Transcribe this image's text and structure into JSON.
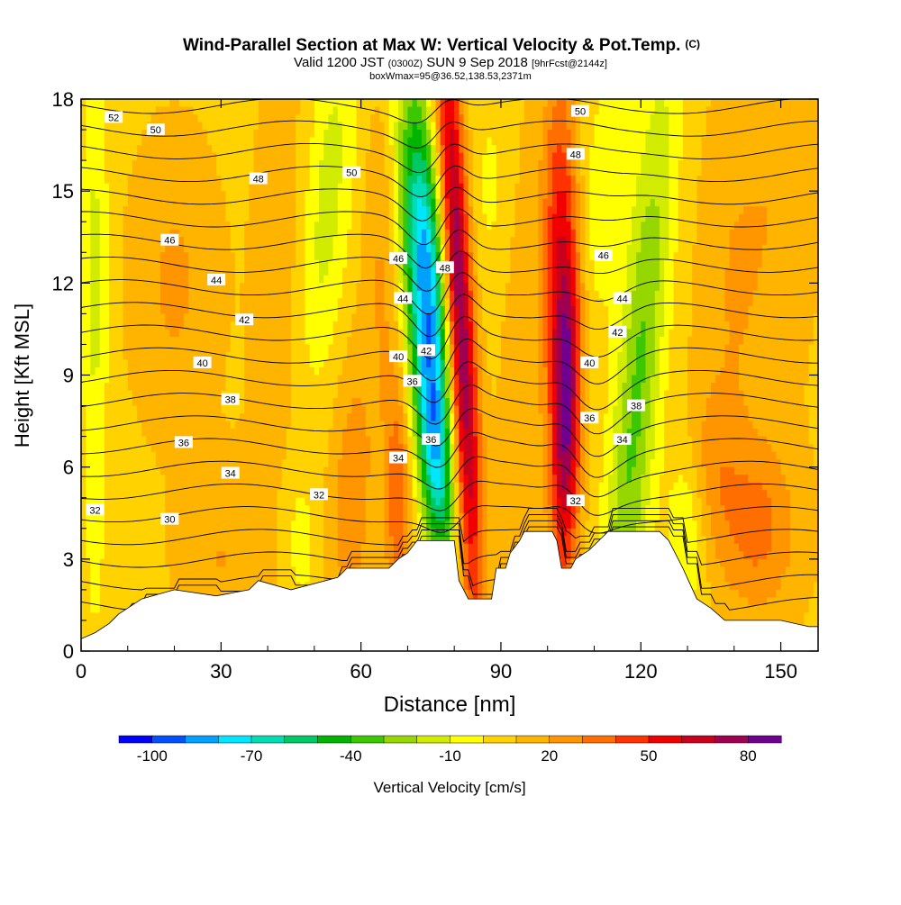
{
  "chart_data": {
    "type": "heatmap",
    "title": "Wind-Parallel Section at Max W: Vertical Velocity & Pot.Temp.",
    "title_mark": "(C)",
    "subtitle_parts": [
      "Valid 1200 JST",
      "(0300Z)",
      "SUN 9 Sep 2018",
      "[9hrFcst@2144z]"
    ],
    "subtitle2": "boxWmax=95@36.52,138.53,2371m",
    "xlabel": "Distance [nm]",
    "ylabel": "Height [Kft MSL]",
    "xlim": [
      0,
      158
    ],
    "ylim": [
      0,
      18
    ],
    "x_ticks": [
      0,
      30,
      60,
      90,
      120,
      150
    ],
    "y_ticks": [
      0,
      3,
      6,
      9,
      12,
      15,
      18
    ],
    "colorbar": {
      "label": "Vertical Velocity [cm/s]",
      "range": [
        -110,
        90
      ],
      "tick_labels": [
        -100,
        -70,
        -40,
        -10,
        20,
        50,
        80
      ],
      "colors": [
        "#0000ff",
        "#0050ff",
        "#00a0ff",
        "#00e6ff",
        "#00dcb4",
        "#00c864",
        "#00b400",
        "#3cc800",
        "#96d700",
        "#d2ec00",
        "#ffff00",
        "#ffd200",
        "#ffb400",
        "#ff9600",
        "#ff6e00",
        "#ff3200",
        "#f00000",
        "#c8001e",
        "#a00050",
        "#700090"
      ]
    },
    "w_features": [
      {
        "x": 74,
        "y": 12,
        "sx": 3.5,
        "sy": 4.5,
        "tilt": -0.45,
        "value": -95
      },
      {
        "x": 76,
        "y": 6,
        "sx": 2.5,
        "sy": 2.5,
        "tilt": -0.45,
        "value": -50
      },
      {
        "x": 81,
        "y": 11,
        "sx": 2.2,
        "sy": 7,
        "tilt": -0.35,
        "value": 85
      },
      {
        "x": 104,
        "y": 8,
        "sx": 2.2,
        "sy": 4,
        "tilt": 0.1,
        "value": 75
      },
      {
        "x": 102,
        "y": 14,
        "sx": 2.5,
        "sy": 4,
        "tilt": 0.1,
        "value": 35
      },
      {
        "x": 119,
        "y": 8,
        "sx": 3.5,
        "sy": 8,
        "tilt": 0.55,
        "value": -40
      },
      {
        "x": 112,
        "y": 15,
        "sx": 4,
        "sy": 3,
        "tilt": 0.5,
        "value": -15
      },
      {
        "x": 52,
        "y": 14,
        "sx": 4,
        "sy": 5,
        "tilt": 0.6,
        "value": -25
      },
      {
        "x": 58,
        "y": 5,
        "sx": 3,
        "sy": 3,
        "tilt": 0.2,
        "value": 20
      },
      {
        "x": 68,
        "y": 5,
        "sx": 2,
        "sy": 3,
        "tilt": 0,
        "value": 30
      },
      {
        "x": 65,
        "y": 13,
        "sx": 3,
        "sy": 4,
        "tilt": 0,
        "value": 15
      },
      {
        "x": 30,
        "y": 3,
        "sx": 6,
        "sy": 2,
        "tilt": 0,
        "value": 12
      },
      {
        "x": 45,
        "y": 10,
        "sx": 5,
        "sy": 6,
        "tilt": 0,
        "value": 12
      },
      {
        "x": 20,
        "y": 12,
        "sx": 6,
        "sy": 3,
        "tilt": 0,
        "value": 14
      },
      {
        "x": 3,
        "y": 12,
        "sx": 2,
        "sy": 8,
        "tilt": 0,
        "value": -20
      },
      {
        "x": 47,
        "y": 3.5,
        "sx": 3,
        "sy": 2,
        "tilt": 0,
        "value": -15
      },
      {
        "x": 88,
        "y": 15,
        "sx": 4,
        "sy": 3,
        "tilt": 0,
        "value": -10
      },
      {
        "x": 94,
        "y": 9,
        "sx": 3,
        "sy": 6,
        "tilt": 0,
        "value": 10
      },
      {
        "x": 135,
        "y": 6,
        "sx": 4,
        "sy": 2,
        "tilt": 0,
        "value": 15
      },
      {
        "x": 145,
        "y": 4,
        "sx": 6,
        "sy": 2,
        "tilt": 0,
        "value": 25
      },
      {
        "x": 140,
        "y": 12,
        "sx": 5,
        "sy": 4,
        "tilt": 0,
        "value": 12
      },
      {
        "x": 150,
        "y": 15,
        "sx": 5,
        "sy": 4,
        "tilt": 0,
        "value": 10
      },
      {
        "x": 130,
        "y": 4,
        "sx": 3,
        "sy": 2,
        "tilt": 0,
        "value": -20
      }
    ],
    "theta_levels": [
      30,
      31,
      32,
      33,
      34,
      35,
      36,
      37,
      38,
      39,
      40,
      41,
      42,
      43,
      44,
      45,
      46,
      47,
      48,
      49,
      50,
      51,
      52
    ],
    "theta_labels": [
      {
        "text": "52",
        "x": 7,
        "y": 17.4
      },
      {
        "text": "50",
        "x": 16,
        "y": 17.0
      },
      {
        "text": "48",
        "x": 38,
        "y": 15.4
      },
      {
        "text": "46",
        "x": 19,
        "y": 13.4
      },
      {
        "text": "44",
        "x": 29,
        "y": 12.1
      },
      {
        "text": "42",
        "x": 35,
        "y": 10.8
      },
      {
        "text": "40",
        "x": 26,
        "y": 9.4
      },
      {
        "text": "38",
        "x": 32,
        "y": 8.2
      },
      {
        "text": "36",
        "x": 22,
        "y": 6.8
      },
      {
        "text": "34",
        "x": 32,
        "y": 5.8
      },
      {
        "text": "32",
        "x": 3,
        "y": 4.6
      },
      {
        "text": "30",
        "x": 19,
        "y": 4.3
      },
      {
        "text": "32",
        "x": 51,
        "y": 5.1
      },
      {
        "text": "50",
        "x": 58,
        "y": 15.6
      },
      {
        "text": "46",
        "x": 68,
        "y": 12.8
      },
      {
        "text": "44",
        "x": 69,
        "y": 11.5
      },
      {
        "text": "40",
        "x": 68,
        "y": 9.6
      },
      {
        "text": "42",
        "x": 74,
        "y": 9.8
      },
      {
        "text": "36",
        "x": 71,
        "y": 8.8
      },
      {
        "text": "36",
        "x": 75,
        "y": 6.9
      },
      {
        "text": "34",
        "x": 68,
        "y": 6.3
      },
      {
        "text": "48",
        "x": 78,
        "y": 12.5
      },
      {
        "text": "50",
        "x": 107,
        "y": 17.6
      },
      {
        "text": "48",
        "x": 106,
        "y": 16.2
      },
      {
        "text": "46",
        "x": 112,
        "y": 12.9
      },
      {
        "text": "44",
        "x": 116,
        "y": 11.5
      },
      {
        "text": "42",
        "x": 115,
        "y": 10.4
      },
      {
        "text": "40",
        "x": 109,
        "y": 9.4
      },
      {
        "text": "38",
        "x": 119,
        "y": 8.0
      },
      {
        "text": "36",
        "x": 109,
        "y": 7.6
      },
      {
        "text": "34",
        "x": 116,
        "y": 6.9
      },
      {
        "text": "32",
        "x": 106,
        "y": 4.9
      }
    ],
    "terrain": [
      [
        0,
        0.4
      ],
      [
        3,
        0.6
      ],
      [
        6,
        0.9
      ],
      [
        8,
        1.2
      ],
      [
        10,
        1.4
      ],
      [
        13,
        1.7
      ],
      [
        20,
        2.0
      ],
      [
        29,
        1.8
      ],
      [
        36,
        2.0
      ],
      [
        38,
        2.3
      ],
      [
        45,
        2.0
      ],
      [
        55,
        2.4
      ],
      [
        57,
        2.7
      ],
      [
        62,
        2.7
      ],
      [
        66,
        2.7
      ],
      [
        68,
        3.0
      ],
      [
        70,
        3.2
      ],
      [
        72,
        3.6
      ],
      [
        80,
        3.6
      ],
      [
        81,
        2.3
      ],
      [
        83,
        1.7
      ],
      [
        88,
        1.7
      ],
      [
        89,
        2.7
      ],
      [
        91,
        2.7
      ],
      [
        92,
        3.2
      ],
      [
        94,
        3.6
      ],
      [
        95,
        3.9
      ],
      [
        101,
        3.9
      ],
      [
        102,
        3.6
      ],
      [
        103,
        2.7
      ],
      [
        105,
        2.7
      ],
      [
        106,
        3.0
      ],
      [
        109,
        3.3
      ],
      [
        113,
        3.9
      ],
      [
        124,
        3.9
      ],
      [
        126,
        3.6
      ],
      [
        129,
        2.7
      ],
      [
        132,
        1.7
      ],
      [
        135,
        1.4
      ],
      [
        138,
        1.0
      ],
      [
        150,
        1.0
      ],
      [
        156,
        0.8
      ],
      [
        158,
        0.8
      ]
    ]
  }
}
